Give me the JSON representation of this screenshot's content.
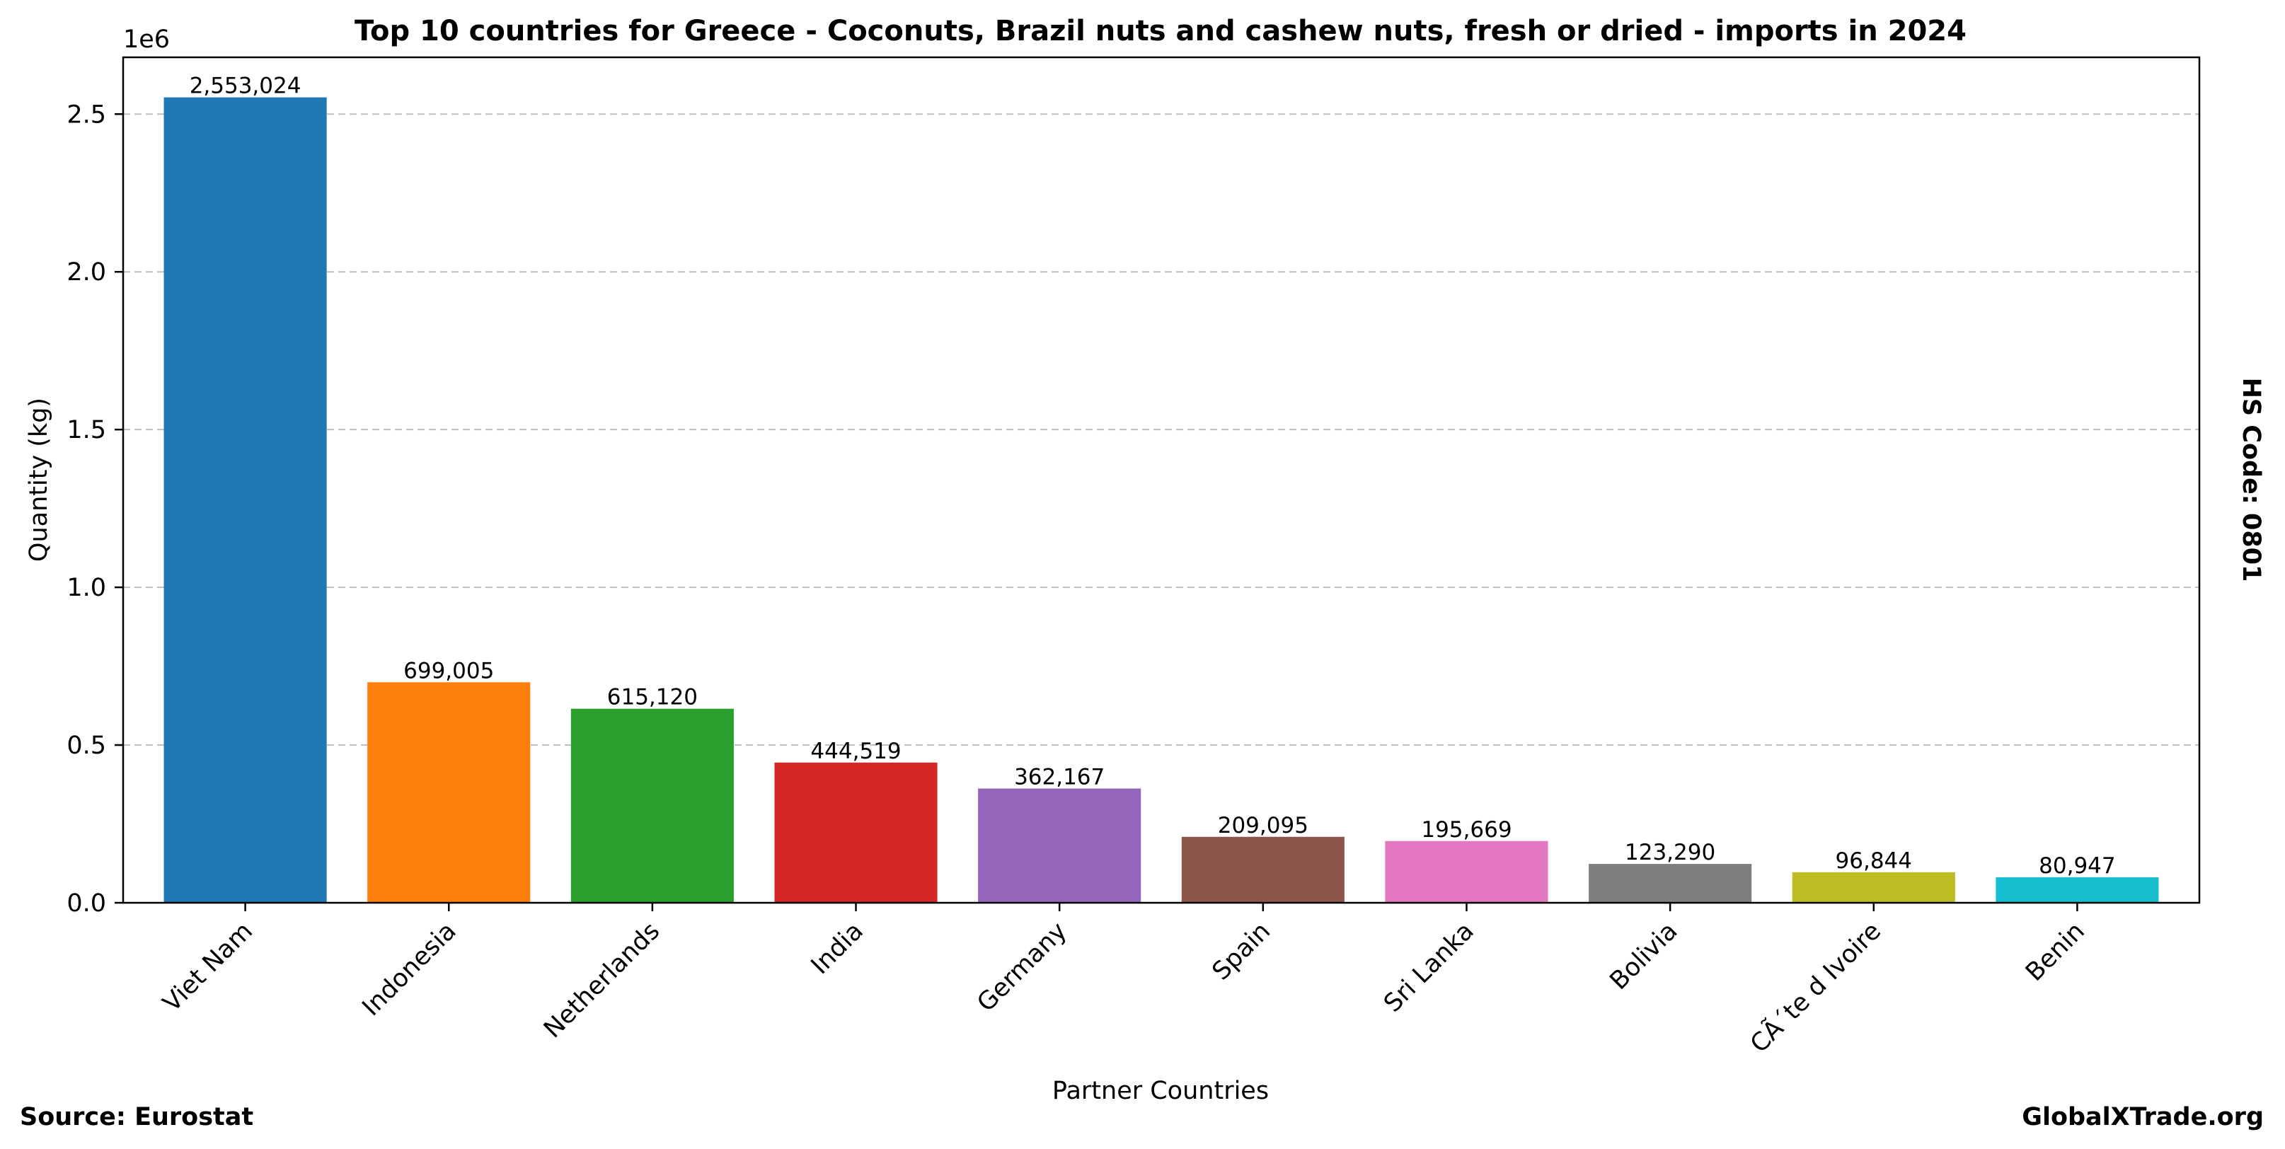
{
  "chart_data": {
    "type": "bar",
    "title": "Top 10 countries for Greece - Coconuts, Brazil nuts and cashew nuts, fresh or dried - imports in 2024",
    "xlabel": "Partner Countries",
    "ylabel": "Quantity (kg)",
    "y_offset_label": "1e6",
    "ylim": [
      0,
      2680000
    ],
    "yticks": [
      0,
      500000,
      1000000,
      1500000,
      2000000,
      2500000
    ],
    "ytick_labels": [
      "0.0",
      "0.5",
      "1.0",
      "1.5",
      "2.0",
      "2.5"
    ],
    "grid": "y-dashed",
    "categories": [
      "Viet Nam",
      "Indonesia",
      "Netherlands",
      "India",
      "Germany",
      "Spain",
      "Sri Lanka",
      "Bolivia",
      "CÃ´te d Ivoire",
      "Benin"
    ],
    "values": [
      2553024,
      699005,
      615120,
      444519,
      362167,
      209095,
      195669,
      123290,
      96844,
      80947
    ],
    "value_labels": [
      "2,553,024",
      "699,005",
      "615,120",
      "444,519",
      "362,167",
      "209,095",
      "195,669",
      "123,290",
      "96,844",
      "80,947"
    ],
    "colors": [
      "#1f77b4",
      "#ff7f0e",
      "#2ca02c",
      "#d62728",
      "#9467bd",
      "#8c564b",
      "#e377c2",
      "#7f7f7f",
      "#bcbd22",
      "#17becf"
    ]
  },
  "side_note": "HS Code: 0801",
  "footer": {
    "source": "Source: Eurostat",
    "brand": "GlobalXTrade.org"
  }
}
